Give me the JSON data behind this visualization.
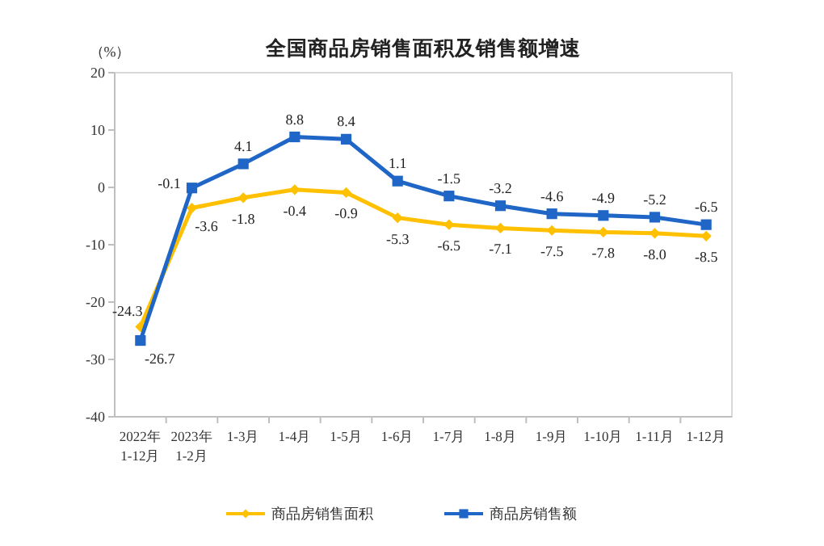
{
  "chart_data": {
    "type": "line",
    "title": "全国商品房销售面积及销售额增速",
    "ylabel": "（%）",
    "categories": [
      "2022年\n1-12月",
      "2023年\n1-2月",
      "1-3月",
      "1-4月",
      "1-5月",
      "1-6月",
      "1-7月",
      "1-8月",
      "1-9月",
      "1-10月",
      "1-11月",
      "1-12月"
    ],
    "series": [
      {
        "name": "商品房销售面积",
        "color": "#ffc000",
        "marker": "diamond",
        "values": [
          -24.3,
          -3.6,
          -1.8,
          -0.4,
          -0.9,
          -5.3,
          -6.5,
          -7.1,
          -7.5,
          -7.8,
          -8.0,
          -8.5
        ],
        "value_labels": [
          "-24.3",
          "-3.6",
          "-1.8",
          "-0.4",
          "-0.9",
          "-5.3",
          "-6.5",
          "-7.1",
          "-7.5",
          "-7.8",
          "-8.0",
          "-8.5"
        ]
      },
      {
        "name": "商品房销售额",
        "color": "#1f66c6",
        "marker": "square",
        "values": [
          -26.7,
          -0.1,
          4.1,
          8.8,
          8.4,
          1.1,
          -1.5,
          -3.2,
          -4.6,
          -4.9,
          -5.2,
          -6.5
        ],
        "value_labels": [
          "-26.7",
          "-0.1",
          "4.1",
          "8.8",
          "8.4",
          "1.1",
          "-1.5",
          "-3.2",
          "-4.6",
          "-4.9",
          "-5.2",
          "-6.5"
        ]
      }
    ],
    "ylim": [
      -40,
      20
    ],
    "yticks": [
      -40,
      -30,
      -20,
      -10,
      0,
      10,
      20
    ],
    "legend": "bottom",
    "grid": false,
    "line_style": "solid"
  }
}
